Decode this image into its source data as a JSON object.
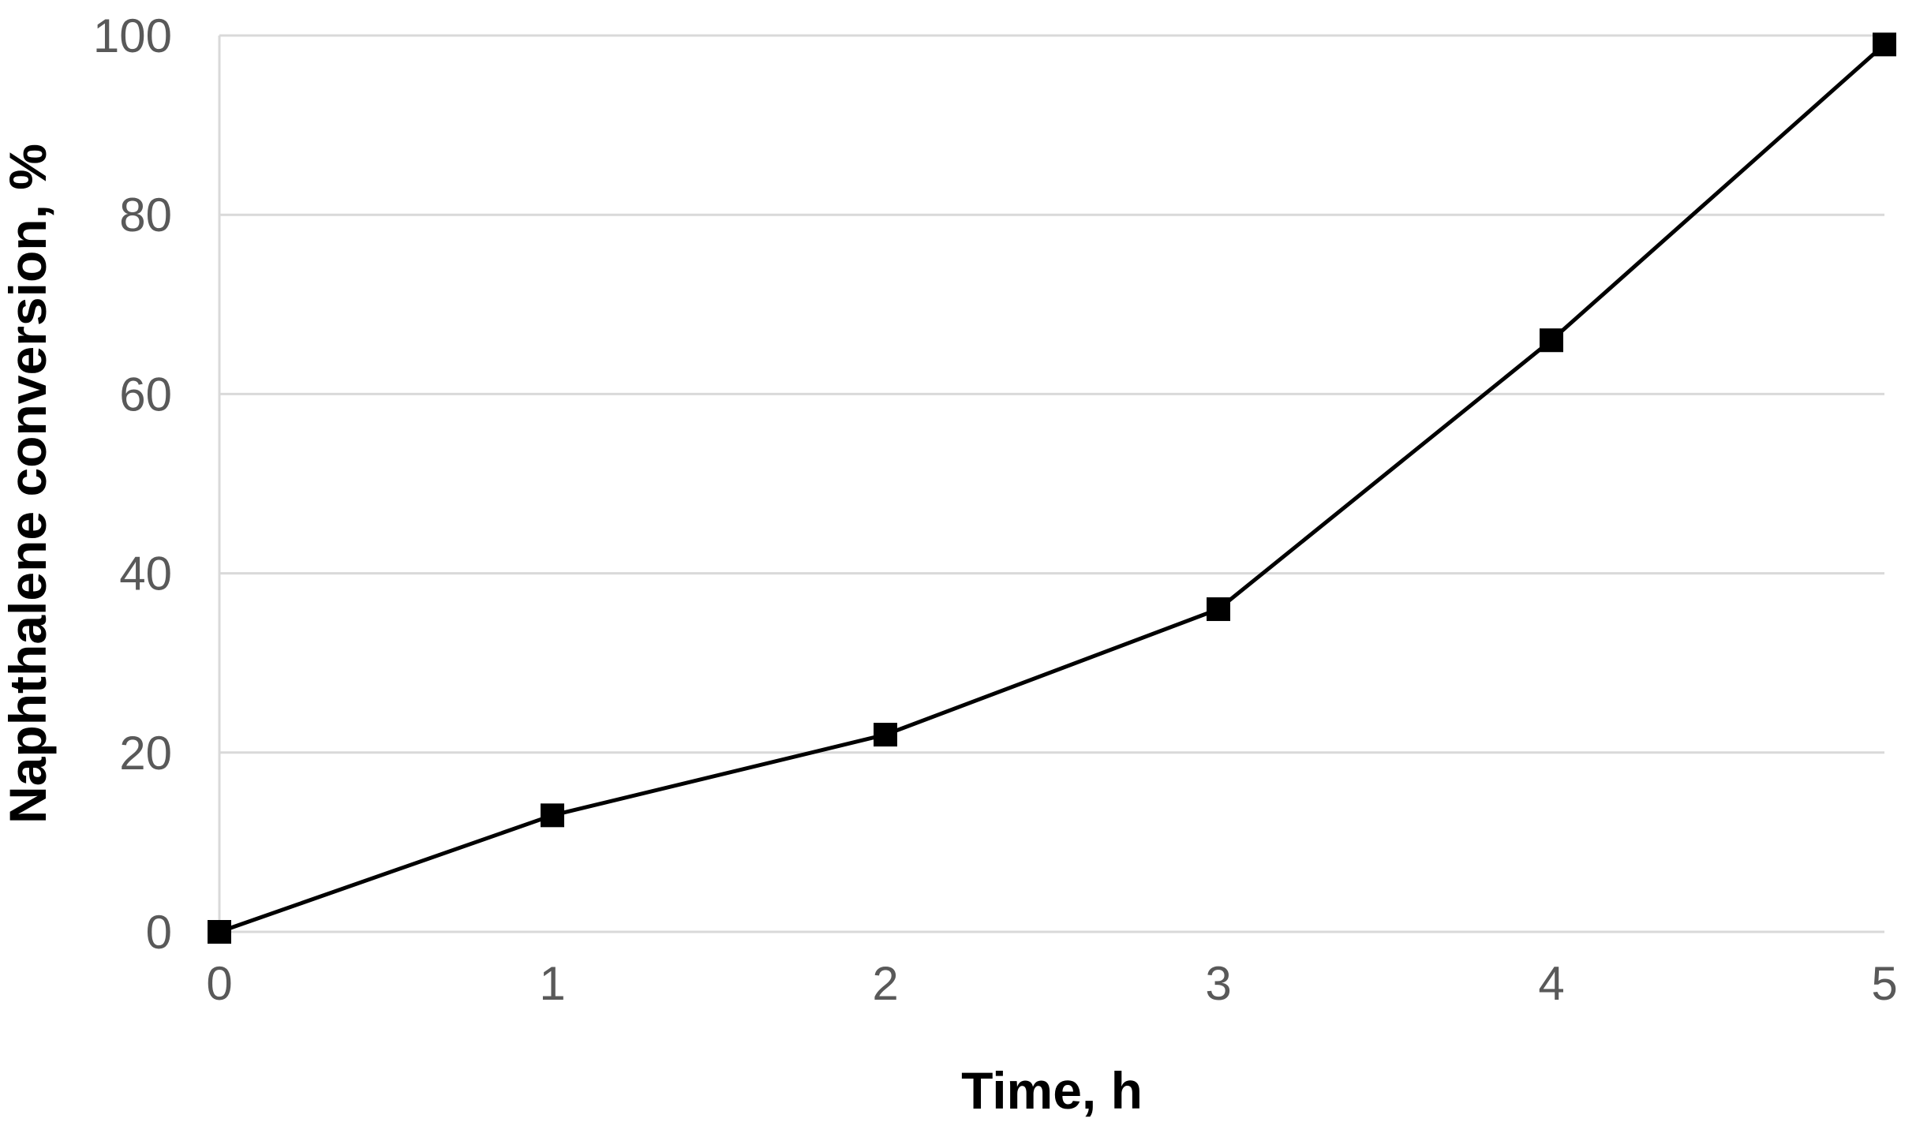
{
  "chart_data": {
    "type": "line",
    "title": "",
    "xlabel": "Time, h",
    "ylabel": "Naphthalene conversion, %",
    "xlim": [
      0,
      5
    ],
    "ylim": [
      0,
      100
    ],
    "x_ticks": [
      "0",
      "1",
      "2",
      "3",
      "4",
      "5"
    ],
    "y_ticks": [
      "0",
      "20",
      "40",
      "60",
      "80",
      "100"
    ],
    "grid": "horizontal",
    "legend": "none",
    "series": [
      {
        "x": [
          0,
          1,
          2,
          3,
          4,
          5
        ],
        "values": [
          0,
          13,
          22,
          36,
          66,
          99
        ],
        "marker": "square",
        "color": "#000000"
      }
    ]
  }
}
